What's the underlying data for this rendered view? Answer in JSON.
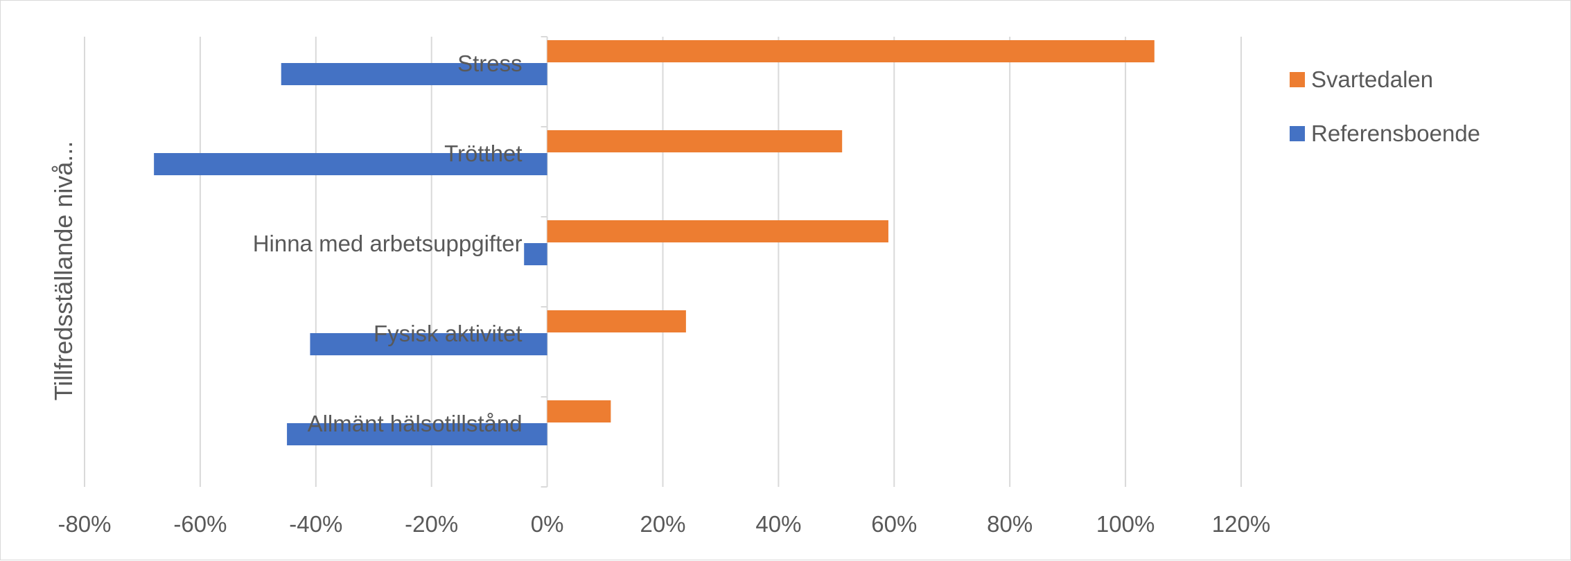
{
  "chart_data": {
    "type": "bar",
    "orientation": "horizontal",
    "categories": [
      "Stress",
      "Trötthet",
      "Hinna med arbetsuppgifter",
      "Fysisk aktivitet",
      "Allmänt hälsotillstånd"
    ],
    "series": [
      {
        "name": "Svartedalen",
        "color": "#ED7D31",
        "values": [
          1.05,
          0.51,
          0.59,
          0.24,
          0.11
        ]
      },
      {
        "name": "Referensboende",
        "color": "#4472C4",
        "values": [
          -0.46,
          -0.68,
          -0.04,
          -0.41,
          -0.45
        ]
      }
    ],
    "xlim": [
      -0.8,
      1.2
    ],
    "xticks": [
      -0.8,
      -0.6,
      -0.4,
      -0.2,
      0,
      0.2,
      0.4,
      0.6,
      0.8,
      1.0,
      1.2
    ],
    "xtick_labels": [
      "-80%",
      "-60%",
      "-40%",
      "-20%",
      "0%",
      "20%",
      "40%",
      "60%",
      "80%",
      "100%",
      "120%"
    ],
    "ylabel": "Tillfredsställande nivå...",
    "xlabel": "",
    "title": "",
    "grid": true,
    "legend_position": "right",
    "legend_order": [
      "Svartedalen",
      "Referensboende"
    ]
  }
}
